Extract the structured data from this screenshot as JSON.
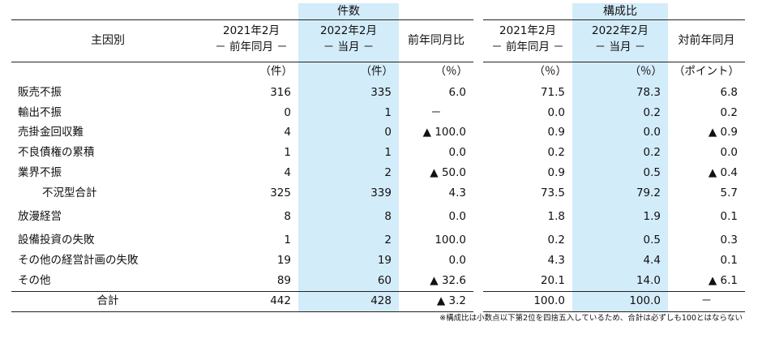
{
  "groups": {
    "count": "件数",
    "ratio": "構成比"
  },
  "headers": {
    "cause": "主因別",
    "c2021": [
      "2021年2月",
      "－ 前年同月 －"
    ],
    "c2022": [
      "2022年2月",
      "－ 当月 －"
    ],
    "yoy": "前年同月比",
    "r2021": [
      "2021年2月",
      "－ 前年同月 －"
    ],
    "r2022": [
      "2022年2月",
      "－ 当月 －"
    ],
    "ryoy": "対前年同月"
  },
  "units": [
    "（件）",
    "（件）",
    "（％）",
    "（％）",
    "（％）",
    "（ポイント）"
  ],
  "rows": [
    {
      "label": "販売不振",
      "values": [
        "316",
        "335",
        "6.0",
        "71.5",
        "78.3",
        "6.8"
      ]
    },
    {
      "label": "輸出不振",
      "values": [
        "0",
        "1",
        "－",
        "0.0",
        "0.2",
        "0.2"
      ]
    },
    {
      "label": "売掛金回収難",
      "values": [
        "4",
        "0",
        "▲ 100.0",
        "0.9",
        "0.0",
        "▲ 0.9"
      ]
    },
    {
      "label": "不良債権の累積",
      "values": [
        "1",
        "1",
        "0.0",
        "0.2",
        "0.2",
        "0.0"
      ]
    },
    {
      "label": "業界不振",
      "values": [
        "4",
        "2",
        "▲ 50.0",
        "0.9",
        "0.5",
        "▲ 0.4"
      ]
    },
    {
      "label": "不況型合計",
      "values": [
        "325",
        "339",
        "4.3",
        "73.5",
        "79.2",
        "5.7"
      ]
    },
    {
      "label": "放漫経営",
      "values": [
        "8",
        "8",
        "0.0",
        "1.8",
        "1.9",
        "0.1"
      ]
    },
    {
      "label": "設備投資の失敗",
      "values": [
        "1",
        "2",
        "100.0",
        "0.2",
        "0.5",
        "0.3"
      ]
    },
    {
      "label": "その他の経営計画の失敗",
      "values": [
        "19",
        "19",
        "0.0",
        "4.3",
        "4.4",
        "0.1"
      ]
    },
    {
      "label": "その他",
      "values": [
        "89",
        "60",
        "▲ 32.6",
        "20.1",
        "14.0",
        "▲ 6.1"
      ]
    },
    {
      "label": "合計",
      "values": [
        "442",
        "428",
        "▲ 3.2",
        "100.0",
        "100.0",
        "－"
      ]
    }
  ],
  "note": "※構成比は小数点以下第2位を四捨五入しているため、合計は必ずしも100とはならない"
}
